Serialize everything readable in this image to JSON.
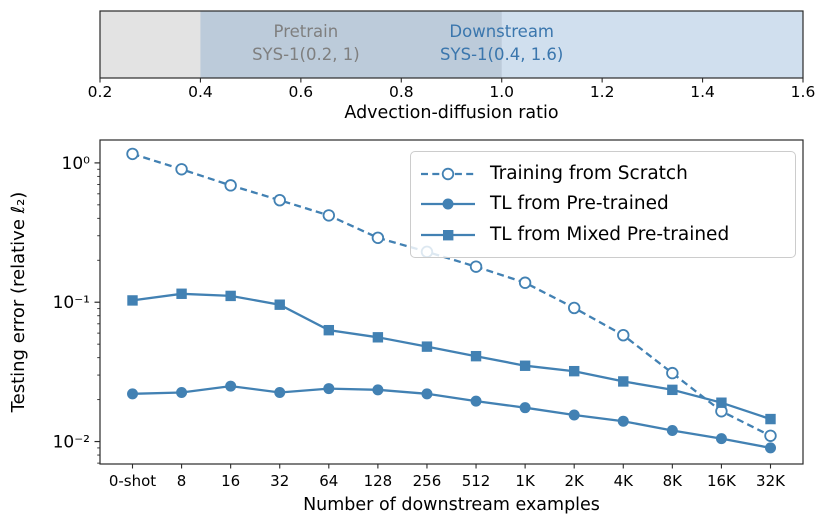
{
  "colors": {
    "series_blue": "#4281b3",
    "pretrain_text_gray": "#7f7f7f",
    "downstream_text_blue": "#3a76ad",
    "pretrain_fill": "rgba(145,145,145,0.25)",
    "downstream_fill": "rgba(86,140,193,0.28)",
    "axis_frame": "#2a2a2a",
    "legend_border": "#cccccc"
  },
  "chart_data": [
    {
      "type": "area",
      "title": "",
      "xlabel": "Advection-diffusion ratio",
      "xlim": [
        0.2,
        1.6
      ],
      "xticks": [
        {
          "value": 0.2,
          "label": "0.2"
        },
        {
          "value": 0.4,
          "label": "0.4"
        },
        {
          "value": 0.6,
          "label": "0.6"
        },
        {
          "value": 0.8,
          "label": "0.8"
        },
        {
          "value": 1.0,
          "label": "1.0"
        },
        {
          "value": 1.2,
          "label": "1.2"
        },
        {
          "value": 1.4,
          "label": "1.4"
        },
        {
          "value": 1.6,
          "label": "1.6"
        }
      ],
      "spans": [
        {
          "name": "pretrain-span",
          "label": "Pretrain",
          "sublabel": "SYS-1(0.2, 1)",
          "from": 0.2,
          "to": 1.0,
          "label_x": 0.61
        },
        {
          "name": "downstream-span",
          "label": "Downstream",
          "sublabel": "SYS-1(0.4, 1.6)",
          "from": 0.4,
          "to": 1.6,
          "label_x": 1.0
        }
      ]
    },
    {
      "type": "line",
      "title": "",
      "xlabel": "Number of downstream examples",
      "ylabel": "Testing error (relative ℓ₂)",
      "yscale": "log",
      "ylim": [
        0.0069,
        1.46
      ],
      "yticks": [
        {
          "value": 1.0,
          "label": "10⁰"
        },
        {
          "value": 0.1,
          "label": "10⁻¹"
        },
        {
          "value": 0.01,
          "label": "10⁻²"
        }
      ],
      "categories": [
        "0-shot",
        "8",
        "16",
        "32",
        "64",
        "128",
        "256",
        "512",
        "1K",
        "2K",
        "4K",
        "8K",
        "16K",
        "32K"
      ],
      "legend_position": "upper right",
      "series": [
        {
          "name": "Training from Scratch",
          "style": "dashed",
          "marker": "circle-open",
          "values": [
            1.16,
            0.9,
            0.69,
            0.54,
            0.42,
            0.29,
            0.23,
            0.18,
            0.138,
            0.091,
            0.058,
            0.031,
            0.0165,
            0.011
          ]
        },
        {
          "name": "TL from Pre-trained",
          "style": "solid",
          "marker": "circle",
          "values": [
            0.022,
            0.0225,
            0.025,
            0.0225,
            0.024,
            0.0235,
            0.022,
            0.0195,
            0.0175,
            0.0155,
            0.014,
            0.012,
            0.0105,
            0.009
          ]
        },
        {
          "name": "TL from Mixed Pre-trained",
          "style": "solid",
          "marker": "square",
          "values": [
            0.103,
            0.115,
            0.111,
            0.096,
            0.063,
            0.056,
            0.048,
            0.041,
            0.035,
            0.032,
            0.027,
            0.0235,
            0.019,
            0.0145
          ]
        }
      ]
    }
  ]
}
